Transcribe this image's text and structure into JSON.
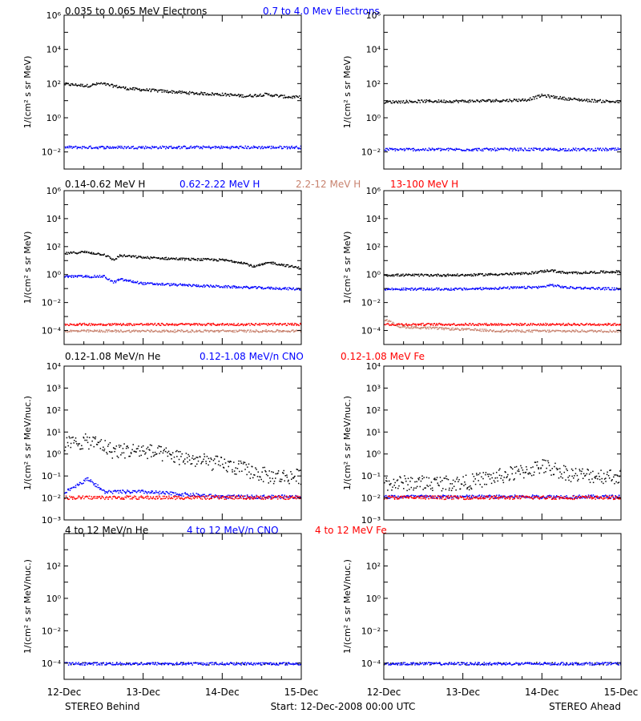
{
  "legend_rows": [
    [
      {
        "text": "0.035 to 0.065 MeV Electrons",
        "color": "#000000"
      },
      {
        "text": "0.7 to 4.0 Mev Electrons",
        "color": "#0000ff"
      }
    ],
    [
      {
        "text": "0.14-0.62 MeV H",
        "color": "#000000"
      },
      {
        "text": "0.62-2.22 MeV H",
        "color": "#0000ff"
      },
      {
        "text": "2.2-12 MeV H",
        "color": "#c8826e"
      },
      {
        "text": "13-100 MeV H",
        "color": "#ff0000"
      }
    ],
    [
      {
        "text": "0.12-1.08 MeV/n He",
        "color": "#000000"
      },
      {
        "text": "0.12-1.08 MeV/n CNO",
        "color": "#0000ff"
      },
      {
        "text": "0.12-1.08 MeV Fe",
        "color": "#ff0000"
      }
    ],
    [
      {
        "text": "4 to 12 MeV/n He",
        "color": "#000000"
      },
      {
        "text": "4 to 12 MeV/n CNO",
        "color": "#0000ff"
      },
      {
        "text": "4 to 12 MeV Fe",
        "color": "#ff0000"
      }
    ]
  ],
  "x_ticks": [
    "12-Dec",
    "13-Dec",
    "14-Dec",
    "15-Dec"
  ],
  "footer": {
    "left": "STEREO Behind",
    "center": "Start: 12-Dec-2008 00:00 UTC",
    "right": "STEREO Ahead"
  },
  "chart_data": [
    {
      "type": "scatter",
      "row": 0,
      "column": "left",
      "ylabel": "1/(cm² s sr MeV)",
      "yscale": "log",
      "ylim_exp": [
        -3,
        6
      ],
      "y_ticks": [
        "10⁻²",
        "10⁰",
        "10²",
        "10⁴",
        "10⁶"
      ],
      "x_range_days": [
        0,
        3
      ],
      "series": [
        {
          "name": "0.035 to 0.065 MeV Electrons",
          "color": "#000000",
          "x": [
            0,
            0.3,
            0.45,
            0.8,
            1.2,
            1.6,
            2.0,
            2.3,
            2.55,
            2.8,
            3.0
          ],
          "y": [
            100,
            80,
            110,
            55,
            40,
            30,
            25,
            20,
            25,
            18,
            17
          ]
        },
        {
          "name": "0.7 to 4.0 Mev Electrons",
          "color": "#0000ff",
          "x": [
            0,
            1,
            2,
            3
          ],
          "y": [
            0.02,
            0.02,
            0.02,
            0.02
          ]
        }
      ]
    },
    {
      "type": "scatter",
      "row": 0,
      "column": "right",
      "ylabel": "1/(cm² s sr MeV)",
      "yscale": "log",
      "ylim_exp": [
        -3,
        6
      ],
      "y_ticks": [
        "10⁻²",
        "10⁰",
        "10²",
        "10⁴",
        "10⁶"
      ],
      "x_range_days": [
        0,
        3
      ],
      "series": [
        {
          "name": "0.035 to 0.065 MeV Electrons",
          "color": "#000000",
          "x": [
            0,
            0.5,
            1.0,
            1.5,
            1.8,
            2.0,
            2.3,
            2.6,
            3.0
          ],
          "y": [
            9,
            10,
            10,
            11,
            12,
            22,
            14,
            11,
            9
          ]
        },
        {
          "name": "0.7 to 4.0 Mev Electrons",
          "color": "#0000ff",
          "x": [
            0,
            1,
            2,
            3
          ],
          "y": [
            0.015,
            0.015,
            0.015,
            0.015
          ]
        }
      ]
    },
    {
      "type": "scatter",
      "row": 1,
      "column": "left",
      "ylabel": "1/(cm² s sr MeV)",
      "yscale": "log",
      "ylim_exp": [
        -5,
        6
      ],
      "y_ticks": [
        "10⁻⁴",
        "10⁻²",
        "10⁰",
        "10²",
        "10⁴",
        "10⁶"
      ],
      "x_range_days": [
        0,
        3
      ],
      "series": [
        {
          "name": "0.14-0.62 MeV H",
          "color": "#000000",
          "x": [
            0,
            0.25,
            0.5,
            0.62,
            0.7,
            1.0,
            1.5,
            2.0,
            2.25,
            2.4,
            2.6,
            3.0
          ],
          "y": [
            35,
            45,
            30,
            12,
            25,
            18,
            14,
            12,
            8,
            4,
            8,
            3
          ]
        },
        {
          "name": "0.62-2.22 MeV H",
          "color": "#0000ff",
          "x": [
            0,
            0.5,
            0.62,
            0.7,
            1.0,
            2.0,
            3.0
          ],
          "y": [
            0.8,
            0.8,
            0.3,
            0.5,
            0.25,
            0.15,
            0.1
          ]
        },
        {
          "name": "2.2-12 MeV H",
          "color": "#c8826e",
          "x": [
            0,
            1.5,
            3.0
          ],
          "y": [
            0.0001,
            0.0001,
            0.0001
          ]
        },
        {
          "name": "13-100 MeV H",
          "color": "#ff0000",
          "x": [
            0,
            1.5,
            3.0
          ],
          "y": [
            0.0003,
            0.0003,
            0.0003
          ]
        }
      ]
    },
    {
      "type": "scatter",
      "row": 1,
      "column": "right",
      "ylabel": "1/(cm² s sr MeV)",
      "yscale": "log",
      "ylim_exp": [
        -5,
        6
      ],
      "y_ticks": [
        "10⁻⁴",
        "10⁻²",
        "10⁰",
        "10²",
        "10⁴",
        "10⁶"
      ],
      "x_range_days": [
        0,
        3
      ],
      "series": [
        {
          "name": "0.14-0.62 MeV H",
          "color": "#000000",
          "x": [
            0,
            1.0,
            1.8,
            2.1,
            2.3,
            3.0
          ],
          "y": [
            1.0,
            1.0,
            1.3,
            2.2,
            1.4,
            1.8
          ]
        },
        {
          "name": "0.62-2.22 MeV H",
          "color": "#0000ff",
          "x": [
            0,
            1.0,
            2.0,
            2.1,
            2.3,
            3.0
          ],
          "y": [
            0.1,
            0.1,
            0.14,
            0.2,
            0.13,
            0.1
          ]
        },
        {
          "name": "2.2-12 MeV H",
          "color": "#c8826e",
          "x": [
            0,
            0.2,
            1.5,
            3.0
          ],
          "y": [
            0.0007,
            0.0002,
            0.0001,
            0.0001
          ]
        },
        {
          "name": "13-100 MeV H",
          "color": "#ff0000",
          "x": [
            0,
            1.5,
            3.0
          ],
          "y": [
            0.0003,
            0.0003,
            0.0003
          ]
        }
      ]
    },
    {
      "type": "scatter",
      "row": 2,
      "column": "left",
      "ylabel": "1/(cm² s sr MeV/nuc.)",
      "yscale": "log",
      "ylim_exp": [
        -3,
        4
      ],
      "y_ticks": [
        "10⁻³",
        "10⁻²",
        "10⁻¹",
        "10⁰",
        "10¹",
        "10²",
        "10³",
        "10⁴"
      ],
      "x_range_days": [
        0,
        3
      ],
      "series": [
        {
          "name": "0.12-1.08 MeV/n He",
          "color": "#000000",
          "x": [
            0,
            0.3,
            0.45,
            0.6,
            1.0,
            1.5,
            2.0,
            2.3,
            2.6,
            3.0
          ],
          "y": [
            3,
            4,
            3,
            1.5,
            1.5,
            0.7,
            0.35,
            0.2,
            0.1,
            0.1
          ]
        },
        {
          "name": "0.12-1.08 MeV/n CNO",
          "color": "#0000ff",
          "x": [
            0,
            0.3,
            0.5,
            1.0,
            2.0,
            3.0
          ],
          "y": [
            0.02,
            0.08,
            0.02,
            0.02,
            0.012,
            0.012
          ]
        },
        {
          "name": "0.12-1.08 MeV Fe",
          "color": "#ff0000",
          "x": [
            0,
            1.5,
            3.0
          ],
          "y": [
            0.011,
            0.011,
            0.011
          ]
        }
      ]
    },
    {
      "type": "scatter",
      "row": 2,
      "column": "right",
      "ylabel": "1/(cm² s sr MeV/nuc.)",
      "yscale": "log",
      "ylim_exp": [
        -3,
        4
      ],
      "y_ticks": [
        "10⁻³",
        "10⁻²",
        "10⁻¹",
        "10⁰",
        "10¹",
        "10²",
        "10³",
        "10⁴"
      ],
      "x_range_days": [
        0,
        3
      ],
      "series": [
        {
          "name": "0.12-1.08 MeV/n He",
          "color": "#000000",
          "x": [
            0,
            1.0,
            1.7,
            2.0,
            2.4,
            3.0
          ],
          "y": [
            0.05,
            0.05,
            0.15,
            0.3,
            0.12,
            0.1
          ]
        },
        {
          "name": "0.12-1.08 MeV/n CNO",
          "color": "#0000ff",
          "x": [
            0,
            1.5,
            3.0
          ],
          "y": [
            0.012,
            0.012,
            0.012
          ]
        },
        {
          "name": "0.12-1.08 MeV Fe",
          "color": "#ff0000",
          "x": [
            0,
            1.5,
            3.0
          ],
          "y": [
            0.011,
            0.011,
            0.011
          ]
        }
      ]
    },
    {
      "type": "scatter",
      "row": 3,
      "column": "left",
      "ylabel": "1/(cm² s sr MeV/nuc.)",
      "yscale": "log",
      "ylim_exp": [
        -5,
        4
      ],
      "y_ticks": [
        "10⁻⁴",
        "10⁻²",
        "10⁰",
        "10²"
      ],
      "x_range_days": [
        0,
        3
      ],
      "series": [
        {
          "name": "4 to 12 MeV/n He",
          "color": "#000000",
          "x": [
            0,
            0.5,
            1.0,
            1.5,
            2.0,
            2.5,
            3.0
          ],
          "y": [
            0.0001,
            0.0001,
            0.0001,
            0.0001,
            0.0001,
            0.0001,
            0.0001
          ]
        },
        {
          "name": "4 to 12 MeV/n CNO",
          "color": "#0000ff",
          "x": [
            0,
            1.5,
            3.0
          ],
          "y": [
            0.0001,
            0.0001,
            0.0001
          ]
        }
      ]
    },
    {
      "type": "scatter",
      "row": 3,
      "column": "right",
      "ylabel": "1/(cm² s sr MeV/nuc.)",
      "yscale": "log",
      "ylim_exp": [
        -5,
        4
      ],
      "y_ticks": [
        "10⁻⁴",
        "10⁻²",
        "10⁰",
        "10²"
      ],
      "x_range_days": [
        0,
        3
      ],
      "series": [
        {
          "name": "4 to 12 MeV/n He",
          "color": "#000000",
          "x": [
            0,
            0.5,
            1.0,
            1.5,
            2.0,
            2.5,
            3.0
          ],
          "y": [
            0.0001,
            0.0001,
            0.0001,
            0.0001,
            0.0001,
            0.0001,
            0.0001
          ]
        },
        {
          "name": "4 to 12 MeV/n CNO",
          "color": "#0000ff",
          "x": [
            0,
            1.5,
            3.0
          ],
          "y": [
            0.0001,
            0.0001,
            0.0001
          ]
        }
      ]
    }
  ]
}
